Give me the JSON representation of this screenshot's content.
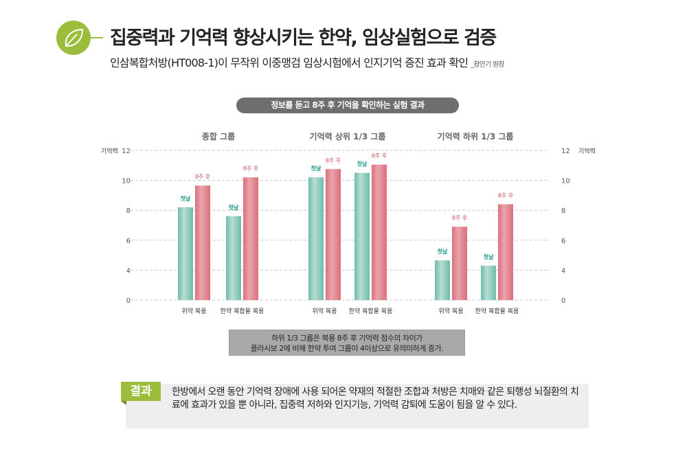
{
  "header": {
    "title": "집중력과 기억력 향상시키는 한약, 임상실험으로 검증",
    "subtitle": "인삼복합처방(HT008-1)이 무작위 이중맹검 임상시험에서 인지기억 증진 효과 확인",
    "author": "_황만기 원장"
  },
  "chart_pill": "정보를 듣고 8주 후 기억을 확인하는 실험 결과",
  "chart_data": {
    "type": "bar",
    "title": "정보를 듣고 8주 후 기억을 확인하는 실험 결과",
    "ylabel": "기억력",
    "ylim": [
      0,
      12
    ],
    "yticks": [
      0,
      4,
      6,
      8,
      10,
      12
    ],
    "ytick_labels": [
      "0",
      "4",
      "6",
      "8",
      "10",
      "12"
    ],
    "grid": true,
    "series_labels": [
      "첫날",
      "8주 후"
    ],
    "colors": {
      "first_day": "#6dbcaa",
      "week8": "#d9707c"
    },
    "groups": [
      {
        "name": "종합 그룹",
        "categories": [
          "위약 복용",
          "한약 복합물 복용"
        ],
        "first_day": [
          8.2,
          7.6
        ],
        "week8": [
          9.65,
          10.2
        ]
      },
      {
        "name": "기억력 상위 1/3 그룹",
        "categories": [
          "위약 복용",
          "한약 복합물 복용"
        ],
        "first_day": [
          10.2,
          10.5
        ],
        "week8": [
          10.75,
          11.05
        ]
      },
      {
        "name": "기억력 하위 1/3 그룹",
        "categories": [
          "위약 복용",
          "한약 복합물 복용"
        ],
        "first_day": [
          4.65,
          4.3
        ],
        "week8": [
          6.9,
          8.4
        ]
      }
    ]
  },
  "note": {
    "line1": "하위 1/3 그룹은 복용 8주 후 기억력 점수의 차이가",
    "line2": "플라시보 2에 비해 한약 투여 그룹이 4이상으로 유의미하게 증가."
  },
  "result": {
    "tag": "결과",
    "text": "한방에서 오랜 동안 기억력 장애에 사용 되어온 약재의 적절한 조합과 처방은 치매와 같은 퇴행성 뇌질환의 치료에 효과가 있을 뿐 아니라, 집중력 저하와 인지기능, 기억력 감퇴에 도움이 됨을 알 수 있다."
  }
}
